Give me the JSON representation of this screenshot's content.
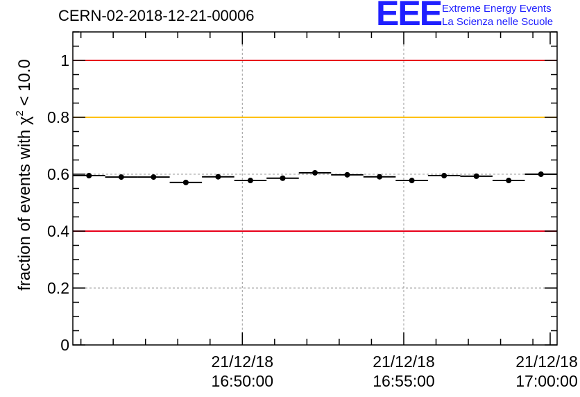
{
  "chart_data": {
    "type": "scatter",
    "title": "CERN-02-2018-12-21-00006",
    "ylabel": {
      "prefix": "fraction of events with ",
      "symbol": "χ",
      "superscript": "2",
      "suffix": " < 10.0"
    },
    "xlabel": "",
    "ylim": [
      0,
      1.1
    ],
    "y_ticks": [
      {
        "value": 0,
        "label": "0"
      },
      {
        "value": 0.2,
        "label": "0.2"
      },
      {
        "value": 0.4,
        "label": "0.4"
      },
      {
        "value": 0.6,
        "label": "0.6"
      },
      {
        "value": 0.8,
        "label": "0.8"
      },
      {
        "value": 1.0,
        "label": "1"
      }
    ],
    "y_minor_step": 0.05,
    "xlim_minutes": [
      44.75,
      59.75
    ],
    "x_ticks": [
      {
        "minutes": 50,
        "date": "21/12/18",
        "time": "16:50:00"
      },
      {
        "minutes": 55,
        "date": "21/12/18",
        "time": "16:55:00"
      },
      {
        "minutes": 60,
        "date": "21/12/18",
        "time": "17:00:00"
      }
    ],
    "x_minor_step_minutes": 1,
    "x_base_time": "21/12/18 16:00:00",
    "grid": true,
    "reference_lines": [
      {
        "value": 1.0,
        "color": "#e8001a"
      },
      {
        "value": 0.8,
        "color": "#ffc000"
      },
      {
        "value": 0.4,
        "color": "#e8001a"
      }
    ],
    "bin_width_minutes": 1,
    "series": [
      {
        "name": "fraction",
        "x_minutes": [
          45.25,
          46.25,
          47.25,
          48.25,
          49.25,
          50.25,
          51.25,
          52.25,
          53.25,
          54.25,
          55.25,
          56.25,
          57.25,
          58.25,
          59.25
        ],
        "values": [
          0.595,
          0.59,
          0.59,
          0.571,
          0.591,
          0.578,
          0.586,
          0.605,
          0.598,
          0.591,
          0.578,
          0.595,
          0.593,
          0.578,
          0.6
        ]
      }
    ],
    "marker_color": "#000000"
  },
  "logo": {
    "mark": "EEE",
    "line1": "Extreme Energy Events",
    "line2": "La Scienza nelle Scuole"
  }
}
